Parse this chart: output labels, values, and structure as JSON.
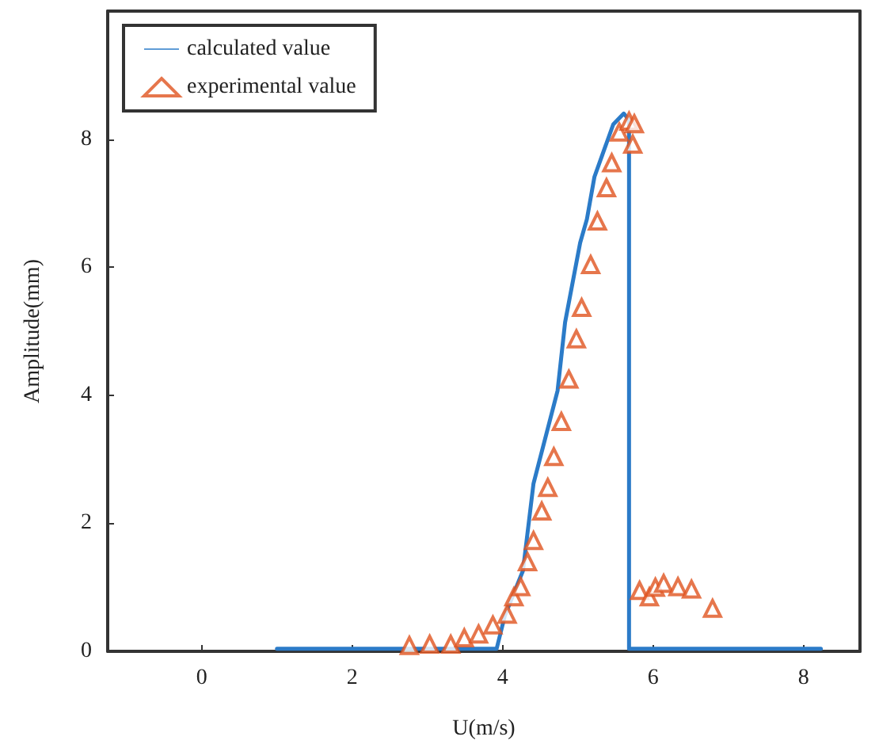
{
  "chart_data": {
    "type": "line",
    "xlabel": "U(m/s)",
    "ylabel": "Amplitude(mm)",
    "xlim": [
      -1.25,
      8.75
    ],
    "xticks": [
      0,
      2,
      4,
      6,
      8
    ],
    "ylim": [
      0,
      10
    ],
    "yticks": [
      0,
      2,
      4,
      6,
      8
    ],
    "grid": false,
    "legend": "top left",
    "series": [
      {
        "name": "calculated value",
        "color": "#2b7bc8",
        "marker": "none",
        "line_style": "solid",
        "x": [
          1.0,
          3.92,
          4.03,
          4.27,
          4.41,
          4.73,
          4.83,
          5.03,
          5.12,
          5.22,
          5.47,
          5.61,
          5.68,
          5.68,
          8.23
        ],
        "values": [
          0.04,
          0.04,
          0.56,
          1.26,
          2.62,
          4.07,
          5.14,
          6.38,
          6.75,
          7.41,
          8.23,
          8.4,
          8.3,
          0.04,
          0.04
        ]
      },
      {
        "name": "experimental value",
        "type": "scatter",
        "color": "#e0541f",
        "marker": "triangle",
        "x": [
          2.76,
          3.03,
          3.31,
          3.49,
          3.68,
          3.87,
          4.06,
          4.15,
          4.24,
          4.33,
          4.41,
          4.52,
          4.6,
          4.68,
          4.78,
          4.88,
          4.98,
          5.05,
          5.17,
          5.26,
          5.38,
          5.45,
          5.55,
          5.68,
          5.75,
          5.73,
          5.82,
          5.95,
          6.03,
          6.14,
          6.33,
          6.51,
          6.79
        ],
        "values": [
          0.09,
          0.11,
          0.11,
          0.21,
          0.27,
          0.41,
          0.58,
          0.85,
          1.01,
          1.4,
          1.73,
          2.19,
          2.56,
          3.04,
          3.59,
          4.25,
          4.88,
          5.37,
          6.04,
          6.72,
          7.24,
          7.63,
          8.11,
          8.28,
          8.24,
          7.92,
          0.95,
          0.85,
          1.0,
          1.06,
          1.01,
          0.97,
          0.67
        ]
      }
    ]
  }
}
